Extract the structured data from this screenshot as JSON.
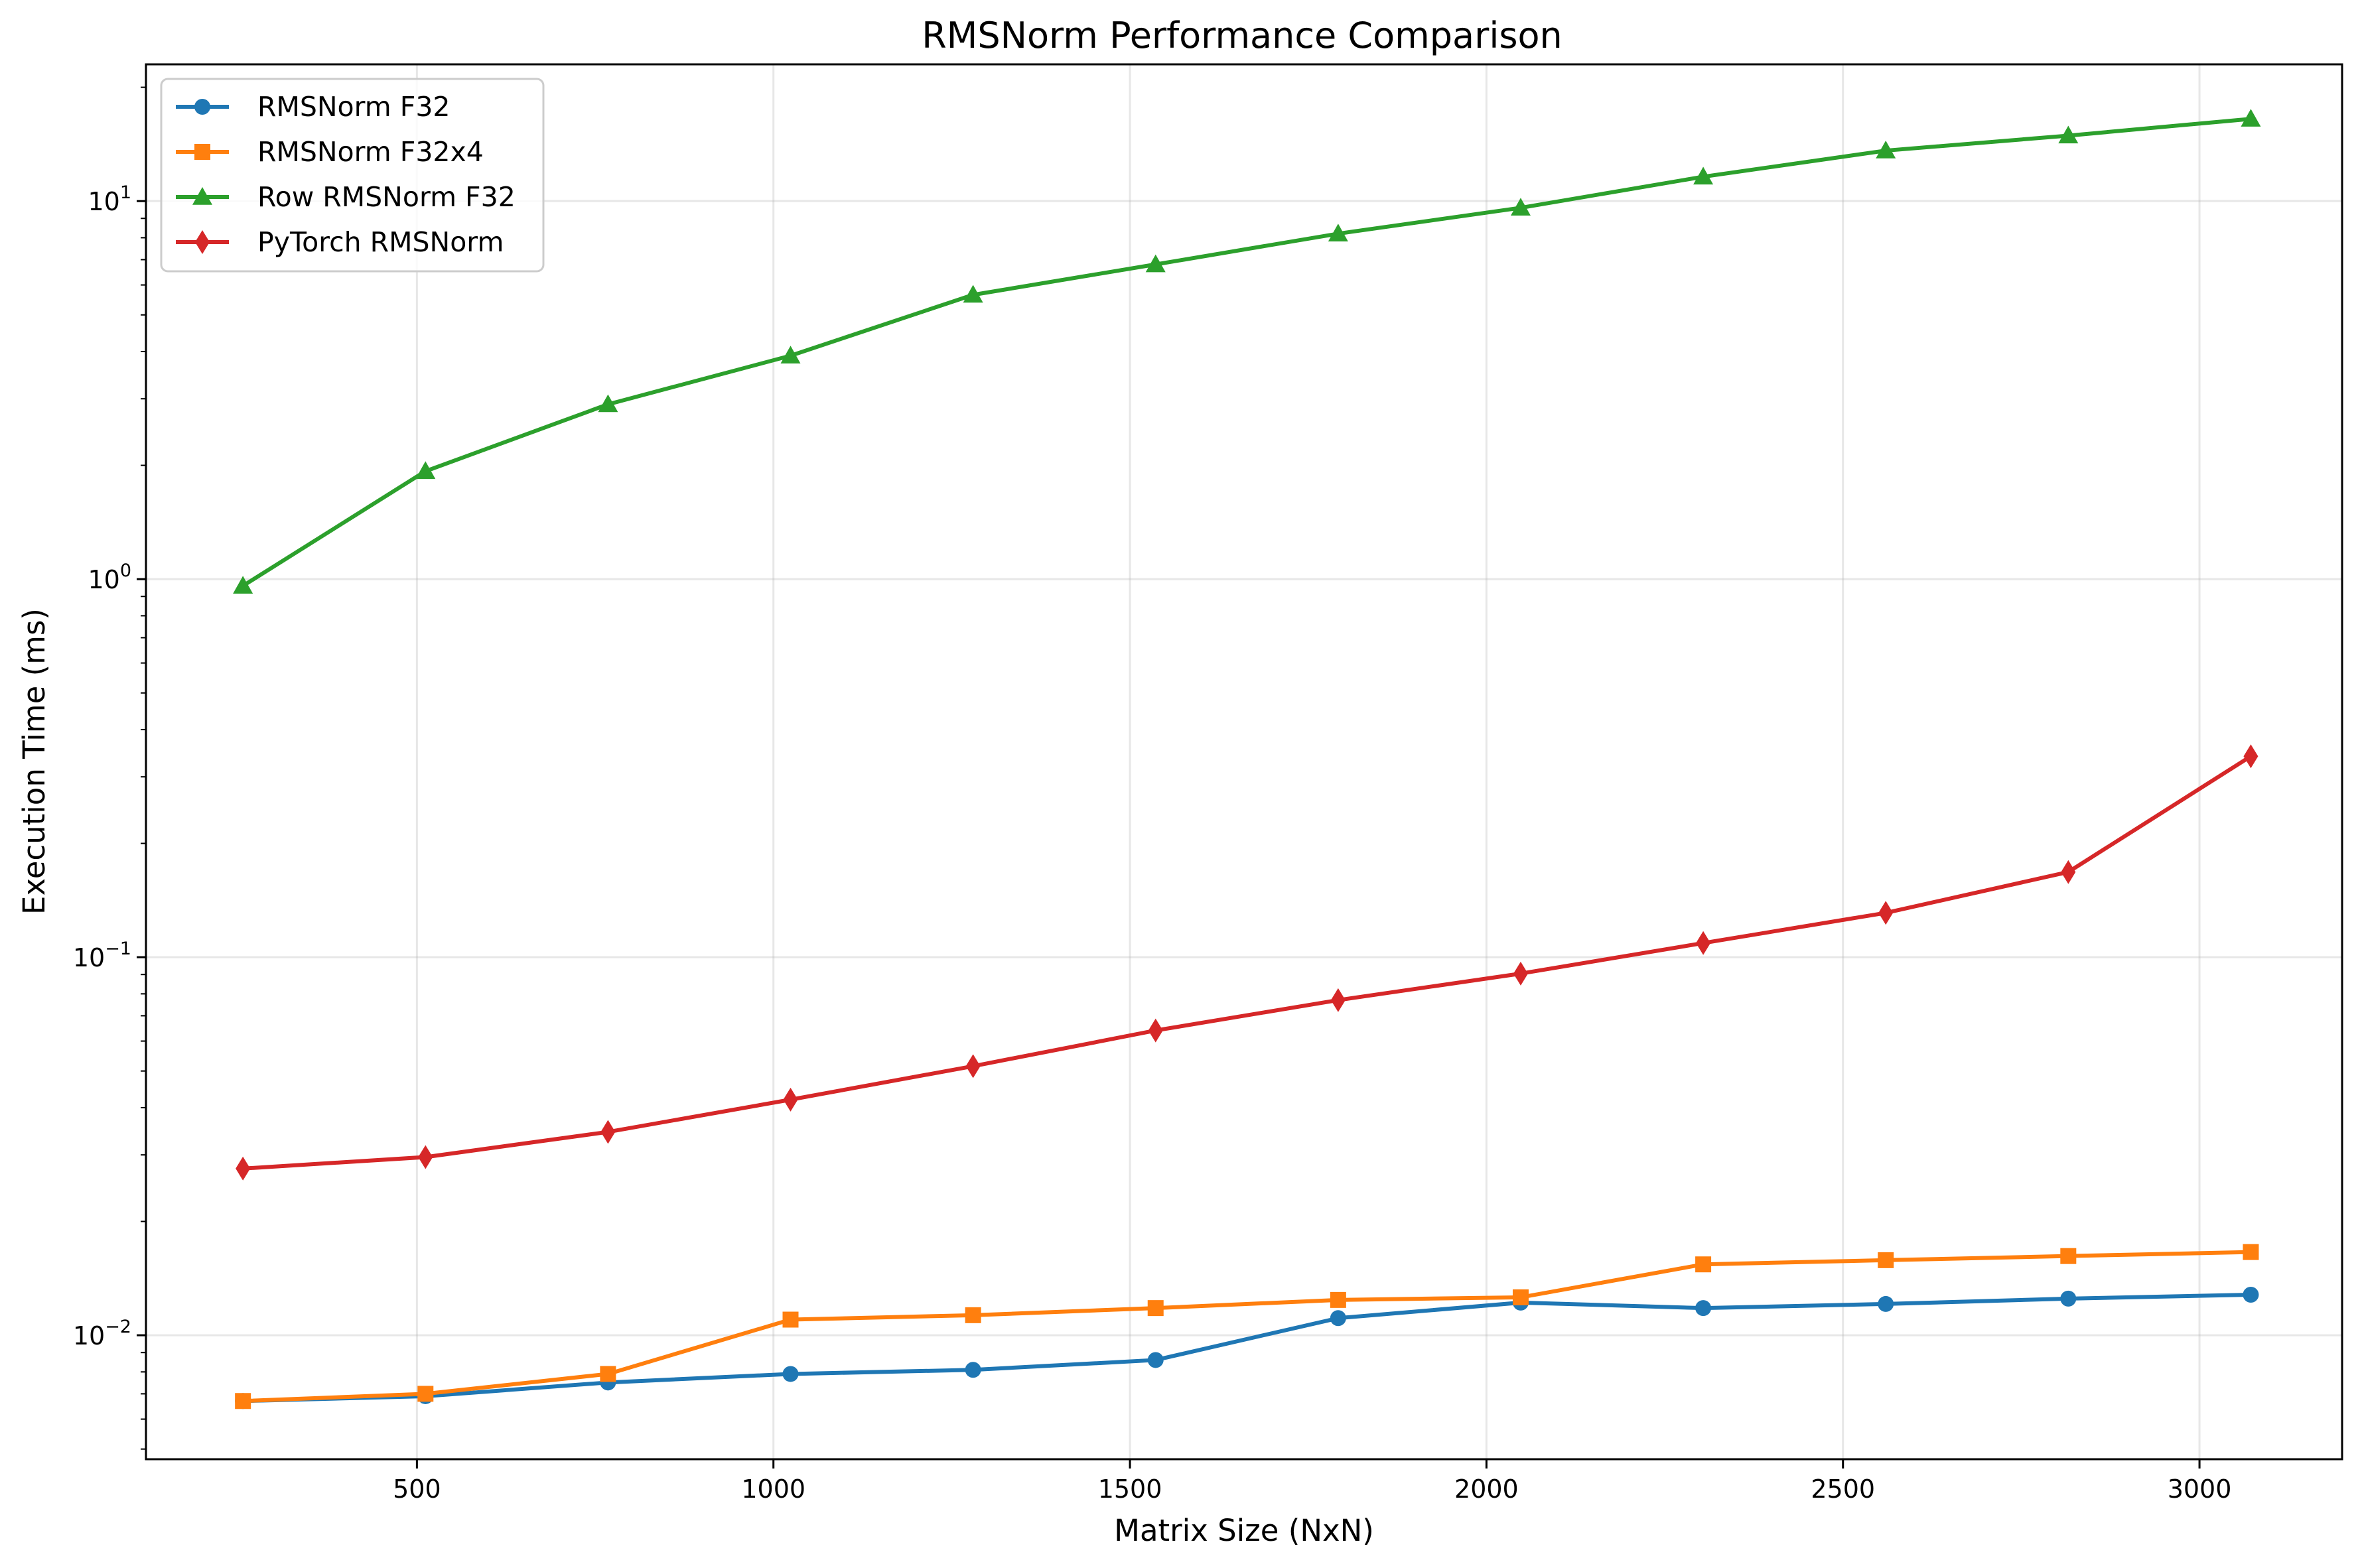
{
  "chart_data": {
    "type": "line",
    "title": "RMSNorm Performance Comparison",
    "xlabel": "Matrix Size (NxN)",
    "ylabel": "Execution Time (ms)",
    "x_scale": "linear",
    "y_scale": "log",
    "xlim": [
      120,
      3200
    ],
    "ylim": [
      0.0047,
      23
    ],
    "x_ticks": [
      500,
      1000,
      1500,
      2000,
      2500,
      3000
    ],
    "x_tick_labels": [
      "500",
      "1000",
      "1500",
      "2000",
      "2500",
      "3000"
    ],
    "y_ticks": [
      0.01,
      0.1,
      1,
      10
    ],
    "y_tick_labels": [
      {
        "base": "10",
        "exp": "−2"
      },
      {
        "base": "10",
        "exp": "−1"
      },
      {
        "base": "10",
        "exp": "0"
      },
      {
        "base": "10",
        "exp": "1"
      }
    ],
    "grid": true,
    "legend_position": "upper-left",
    "x": [
      256,
      512,
      768,
      1024,
      1280,
      1536,
      1792,
      2048,
      2304,
      2560,
      2816,
      3072
    ],
    "series": [
      {
        "name": "RMSNorm F32",
        "color": "#1f77b4",
        "marker": "circle",
        "values": [
          0.0067,
          0.0069,
          0.0075,
          0.0079,
          0.0081,
          0.0086,
          0.0111,
          0.0122,
          0.0118,
          0.0121,
          0.0125,
          0.0128
        ]
      },
      {
        "name": "RMSNorm F32x4",
        "color": "#ff7f0e",
        "marker": "square",
        "values": [
          0.0067,
          0.007,
          0.0079,
          0.011,
          0.0113,
          0.0118,
          0.0124,
          0.0126,
          0.0154,
          0.0158,
          0.0162,
          0.0166
        ]
      },
      {
        "name": "Row RMSNorm F32",
        "color": "#2ca02c",
        "marker": "triangle",
        "values": [
          0.96,
          1.93,
          2.9,
          3.9,
          5.65,
          6.8,
          8.2,
          9.6,
          11.6,
          13.6,
          14.9,
          16.5
        ]
      },
      {
        "name": "PyTorch RMSNorm",
        "color": "#d62728",
        "marker": "diamond",
        "values": [
          0.0276,
          0.0296,
          0.0345,
          0.042,
          0.0515,
          0.064,
          0.077,
          0.0905,
          0.109,
          0.131,
          0.168,
          0.34
        ]
      }
    ]
  }
}
